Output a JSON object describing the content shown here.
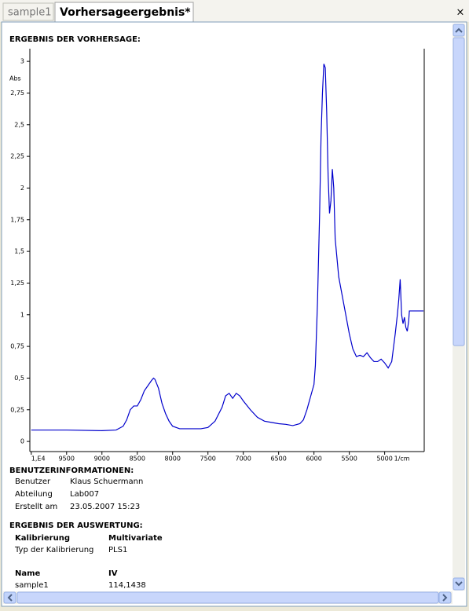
{
  "tabs": [
    "sample1",
    "Vorhersageergebnis*"
  ],
  "close": "×",
  "chart_data": {
    "type": "line",
    "title": "ERGEBNIS DER VORHERSAGE:",
    "xlabel": "1/cm",
    "ylabel": "Abs",
    "x": [
      10000,
      9500,
      9000,
      8800,
      8700,
      8650,
      8600,
      8550,
      8500,
      8450,
      8400,
      8350,
      8300,
      8270,
      8250,
      8200,
      8150,
      8100,
      8050,
      8000,
      7900,
      7800,
      7600,
      7500,
      7400,
      7300,
      7250,
      7200,
      7150,
      7100,
      7050,
      7000,
      6900,
      6800,
      6700,
      6600,
      6500,
      6400,
      6300,
      6200,
      6150,
      6100,
      6050,
      6000,
      5980,
      5950,
      5920,
      5900,
      5880,
      5860,
      5840,
      5820,
      5800,
      5780,
      5760,
      5740,
      5720,
      5700,
      5650,
      5600,
      5550,
      5500,
      5450,
      5400,
      5350,
      5300,
      5250,
      5200,
      5150,
      5100,
      5050,
      5000,
      4950,
      4900,
      4850,
      4820,
      4800,
      4780,
      4760,
      4740,
      4720,
      4700,
      4680,
      4660,
      4650,
      4450
    ],
    "series": [
      {
        "color": "#0000cc",
        "values": [
          0.09,
          0.09,
          0.085,
          0.09,
          0.12,
          0.17,
          0.25,
          0.28,
          0.28,
          0.33,
          0.4,
          0.44,
          0.48,
          0.5,
          0.49,
          0.42,
          0.3,
          0.22,
          0.16,
          0.12,
          0.1,
          0.1,
          0.1,
          0.11,
          0.16,
          0.27,
          0.36,
          0.38,
          0.34,
          0.38,
          0.36,
          0.32,
          0.25,
          0.19,
          0.16,
          0.15,
          0.14,
          0.135,
          0.125,
          0.14,
          0.17,
          0.25,
          0.35,
          0.45,
          0.6,
          1.1,
          1.8,
          2.4,
          2.75,
          2.98,
          2.95,
          2.6,
          2.1,
          1.8,
          1.9,
          2.15,
          2.0,
          1.6,
          1.3,
          1.15,
          1.0,
          0.85,
          0.73,
          0.67,
          0.68,
          0.67,
          0.7,
          0.66,
          0.63,
          0.63,
          0.65,
          0.62,
          0.58,
          0.63,
          0.85,
          1.0,
          1.12,
          1.28,
          1.0,
          0.93,
          0.98,
          0.9,
          0.87,
          0.95,
          1.03,
          1.03
        ]
      }
    ],
    "xlim": [
      10020,
      4440
    ],
    "ylim": [
      -0.08,
      3.1
    ],
    "xticks": [
      {
        "value": 10000,
        "label": "1,E4"
      },
      9500,
      9000,
      8500,
      8000,
      7500,
      7000,
      6500,
      6000,
      5500,
      5000
    ],
    "yticks": [
      0,
      {
        "value": 0.25,
        "label": "0,25"
      },
      {
        "value": 0.5,
        "label": "0,5"
      },
      {
        "value": 0.75,
        "label": "0,75"
      },
      1,
      {
        "value": 1.25,
        "label": "1,25"
      },
      {
        "value": 1.5,
        "label": "1,5"
      },
      {
        "value": 1.75,
        "label": "1,75"
      },
      2,
      {
        "value": 2.25,
        "label": "2,25"
      },
      {
        "value": 2.5,
        "label": "2,5"
      },
      {
        "value": 2.75,
        "label": "2,75"
      },
      3
    ]
  },
  "user_info": {
    "title": "BENUTZERINFORMATIONEN:",
    "rows": [
      [
        "Benutzer",
        "Klaus Schuermann"
      ],
      [
        "Abteilung",
        "Lab007"
      ],
      [
        "Erstellt am",
        "23.05.2007 15:23"
      ]
    ]
  },
  "evaluation": {
    "title": "ERGEBNIS DER AUSWERTUNG:",
    "header": [
      "Kalibrierung",
      "Multivariate"
    ],
    "rows": [
      [
        "Typ der Kalibrierung",
        "PLS1"
      ]
    ],
    "result_header": [
      "Name",
      "IV"
    ],
    "result_rows": [
      [
        "sample1",
        "114,1438"
      ]
    ]
  }
}
